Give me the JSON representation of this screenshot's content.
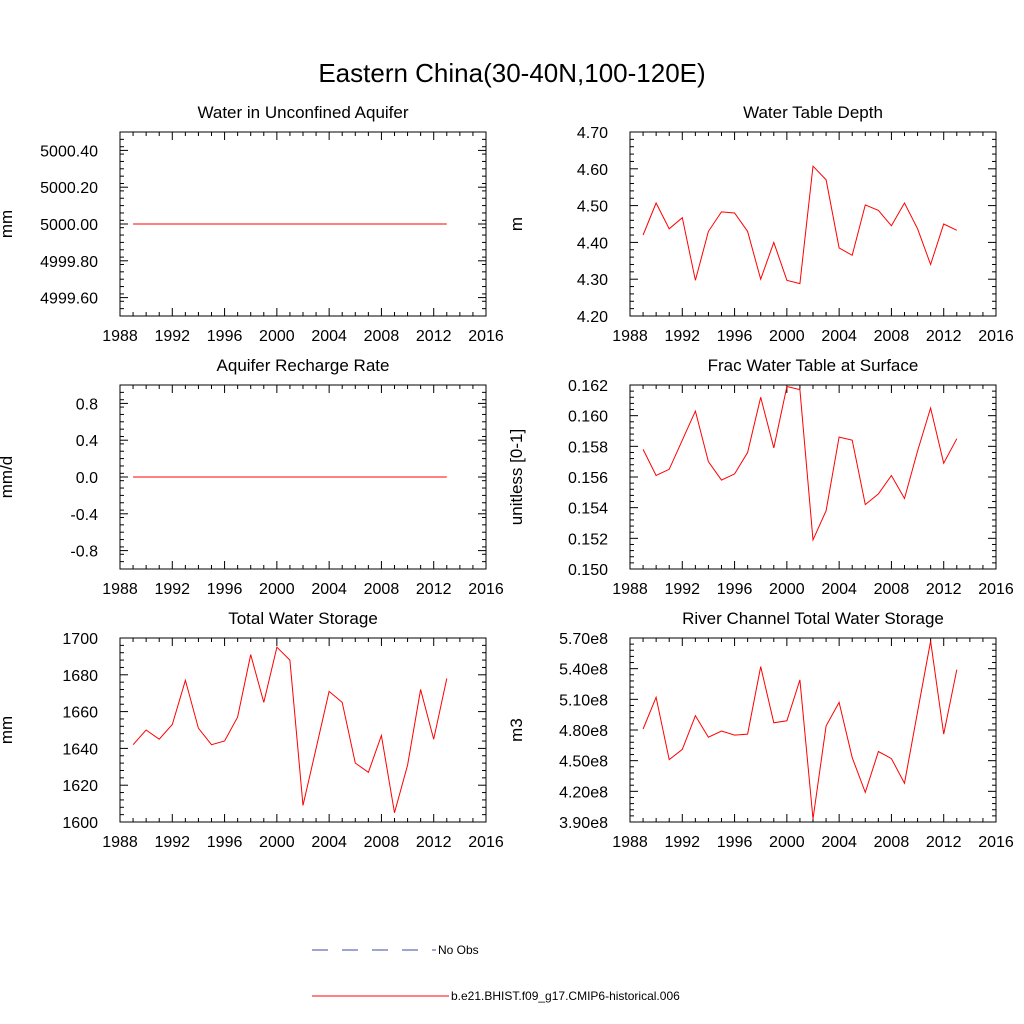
{
  "figure": {
    "title": "Eastern China(30-40N,100-120E)"
  },
  "legend": {
    "items": [
      {
        "label": "No Obs",
        "color": "#3b4ba0",
        "style": "dashed"
      },
      {
        "label": "b.e21.BHIST.f09_g17.CMIP6-historical.006",
        "color": "#ff0000",
        "style": "solid"
      }
    ]
  },
  "chart_data": [
    {
      "type": "line",
      "title": "Water in Unconfined Aquifer",
      "ylabel": "mm",
      "xlim": [
        1988,
        2016
      ],
      "ylim": [
        4999.5,
        5000.5
      ],
      "xticks": [
        1988,
        1992,
        1996,
        2000,
        2004,
        2008,
        2012,
        2016
      ],
      "xtick_labels": [
        "1988",
        "1992",
        "1996",
        "2000",
        "2004",
        "2008",
        "2012",
        "2016"
      ],
      "yticks": [
        4999.6,
        4999.8,
        5000.0,
        5000.2,
        5000.4
      ],
      "ytick_labels": [
        "4999.60",
        "4999.80",
        "5000.00",
        "5000.20",
        "5000.40"
      ],
      "series": [
        {
          "name": "b.e21.BHIST.f09_g17.CMIP6-historical.006",
          "color": "#ff0000",
          "x": [
            1989,
            1990,
            1991,
            1992,
            1993,
            1994,
            1995,
            1996,
            1997,
            1998,
            1999,
            2000,
            2001,
            2002,
            2003,
            2004,
            2005,
            2006,
            2007,
            2008,
            2009,
            2010,
            2011,
            2012,
            2013
          ],
          "y": [
            5000,
            5000,
            5000,
            5000,
            5000,
            5000,
            5000,
            5000,
            5000,
            5000,
            5000,
            5000,
            5000,
            5000,
            5000,
            5000,
            5000,
            5000,
            5000,
            5000,
            5000,
            5000,
            5000,
            5000,
            5000
          ]
        }
      ]
    },
    {
      "type": "line",
      "title": "Water Table Depth",
      "ylabel": "m",
      "xlim": [
        1988,
        2016
      ],
      "ylim": [
        4.2,
        4.7
      ],
      "xticks": [
        1988,
        1992,
        1996,
        2000,
        2004,
        2008,
        2012,
        2016
      ],
      "xtick_labels": [
        "1988",
        "1992",
        "1996",
        "2000",
        "2004",
        "2008",
        "2012",
        "2016"
      ],
      "yticks": [
        4.2,
        4.3,
        4.4,
        4.5,
        4.6,
        4.7
      ],
      "ytick_labels": [
        "4.20",
        "4.30",
        "4.40",
        "4.50",
        "4.60",
        "4.70"
      ],
      "series": [
        {
          "name": "b.e21.BHIST.f09_g17.CMIP6-historical.006",
          "color": "#ff0000",
          "x": [
            1989,
            1990,
            1991,
            1992,
            1993,
            1994,
            1995,
            1996,
            1997,
            1998,
            1999,
            2000,
            2001,
            2002,
            2003,
            2004,
            2005,
            2006,
            2007,
            2008,
            2009,
            2010,
            2011,
            2012,
            2013
          ],
          "y": [
            4.42,
            4.507,
            4.437,
            4.467,
            4.297,
            4.43,
            4.483,
            4.48,
            4.43,
            4.3,
            4.4,
            4.297,
            4.288,
            4.607,
            4.57,
            4.385,
            4.365,
            4.502,
            4.487,
            4.445,
            4.507,
            4.437,
            4.34,
            4.45,
            4.433
          ]
        }
      ]
    },
    {
      "type": "line",
      "title": "Aquifer Recharge Rate",
      "ylabel": "mm/d",
      "xlim": [
        1988,
        2016
      ],
      "ylim": [
        -1.0,
        1.0
      ],
      "xticks": [
        1988,
        1992,
        1996,
        2000,
        2004,
        2008,
        2012,
        2016
      ],
      "xtick_labels": [
        "1988",
        "1992",
        "1996",
        "2000",
        "2004",
        "2008",
        "2012",
        "2016"
      ],
      "yticks": [
        -0.8,
        -0.4,
        0.0,
        0.4,
        0.8
      ],
      "ytick_labels": [
        "-0.8",
        "-0.4",
        "0.0",
        "0.4",
        "0.8"
      ],
      "series": [
        {
          "name": "b.e21.BHIST.f09_g17.CMIP6-historical.006",
          "color": "#ff0000",
          "x": [
            1989,
            1990,
            1991,
            1992,
            1993,
            1994,
            1995,
            1996,
            1997,
            1998,
            1999,
            2000,
            2001,
            2002,
            2003,
            2004,
            2005,
            2006,
            2007,
            2008,
            2009,
            2010,
            2011,
            2012,
            2013
          ],
          "y": [
            0,
            0,
            0,
            0,
            0,
            0,
            0,
            0,
            0,
            0,
            0,
            0,
            0,
            0,
            0,
            0,
            0,
            0,
            0,
            0,
            0,
            0,
            0,
            0,
            0
          ]
        }
      ]
    },
    {
      "type": "line",
      "title": "Frac Water Table at Surface",
      "ylabel": "unitless [0-1]",
      "xlim": [
        1988,
        2016
      ],
      "ylim": [
        0.15,
        0.162
      ],
      "xticks": [
        1988,
        1992,
        1996,
        2000,
        2004,
        2008,
        2012,
        2016
      ],
      "xtick_labels": [
        "1988",
        "1992",
        "1996",
        "2000",
        "2004",
        "2008",
        "2012",
        "2016"
      ],
      "yticks": [
        0.15,
        0.152,
        0.154,
        0.156,
        0.158,
        0.16,
        0.162
      ],
      "ytick_labels": [
        "0.150",
        "0.152",
        "0.154",
        "0.156",
        "0.158",
        "0.160",
        "0.162"
      ],
      "series": [
        {
          "name": "b.e21.BHIST.f09_g17.CMIP6-historical.006",
          "color": "#ff0000",
          "x": [
            1989,
            1990,
            1991,
            1992,
            1993,
            1994,
            1995,
            1996,
            1997,
            1998,
            1999,
            2000,
            2001,
            2002,
            2003,
            2004,
            2005,
            2006,
            2007,
            2008,
            2009,
            2010,
            2011,
            2012,
            2013
          ],
          "y": [
            0.1578,
            0.1561,
            0.1565,
            0.1584,
            0.1603,
            0.157,
            0.1558,
            0.1562,
            0.1576,
            0.1612,
            0.1579,
            0.1619,
            0.1617,
            0.1519,
            0.1538,
            0.1586,
            0.1584,
            0.1542,
            0.1549,
            0.1561,
            0.1546,
            0.1577,
            0.1605,
            0.1569,
            0.1585
          ]
        }
      ]
    },
    {
      "type": "line",
      "title": "Total Water Storage",
      "ylabel": "mm",
      "xlim": [
        1988,
        2016
      ],
      "ylim": [
        1600,
        1700
      ],
      "xticks": [
        1988,
        1992,
        1996,
        2000,
        2004,
        2008,
        2012,
        2016
      ],
      "xtick_labels": [
        "1988",
        "1992",
        "1996",
        "2000",
        "2004",
        "2008",
        "2012",
        "2016"
      ],
      "yticks": [
        1600,
        1620,
        1640,
        1660,
        1680,
        1700
      ],
      "ytick_labels": [
        "1600",
        "1620",
        "1640",
        "1660",
        "1680",
        "1700"
      ],
      "series": [
        {
          "name": "b.e21.BHIST.f09_g17.CMIP6-historical.006",
          "color": "#ff0000",
          "x": [
            1989,
            1990,
            1991,
            1992,
            1993,
            1994,
            1995,
            1996,
            1997,
            1998,
            1999,
            2000,
            2001,
            2002,
            2003,
            2004,
            2005,
            2006,
            2007,
            2008,
            2009,
            2010,
            2011,
            2012,
            2013
          ],
          "y": [
            1642,
            1650,
            1645,
            1653,
            1677,
            1651,
            1642,
            1644,
            1657,
            1691,
            1665,
            1695,
            1688,
            1609,
            1640,
            1671,
            1665,
            1632,
            1627,
            1647,
            1605,
            1631,
            1672,
            1645,
            1678
          ]
        }
      ]
    },
    {
      "type": "line",
      "title": "River Channel Total Water Storage",
      "ylabel": "m3",
      "xlim": [
        1988,
        2016
      ],
      "ylim": [
        390000000,
        570000000
      ],
      "xticks": [
        1988,
        1992,
        1996,
        2000,
        2004,
        2008,
        2012,
        2016
      ],
      "xtick_labels": [
        "1988",
        "1992",
        "1996",
        "2000",
        "2004",
        "2008",
        "2012",
        "2016"
      ],
      "yticks": [
        390000000,
        420000000,
        450000000,
        480000000,
        510000000,
        540000000,
        570000000
      ],
      "ytick_labels": [
        "3.90e8",
        "4.20e8",
        "4.50e8",
        "4.80e8",
        "5.10e8",
        "5.40e8",
        "5.70e8"
      ],
      "series": [
        {
          "name": "b.e21.BHIST.f09_g17.CMIP6-historical.006",
          "color": "#ff0000",
          "x": [
            1989,
            1990,
            1991,
            1992,
            1993,
            1994,
            1995,
            1996,
            1997,
            1998,
            1999,
            2000,
            2001,
            2002,
            2003,
            2004,
            2005,
            2006,
            2007,
            2008,
            2009,
            2010,
            2011,
            2012,
            2013
          ],
          "y": [
            481000000,
            512000000,
            451000000,
            461000000,
            494000000,
            473000000,
            479000000,
            475000000,
            476000000,
            542000000,
            487000000,
            489000000,
            529000000,
            393000000,
            484000000,
            507000000,
            453000000,
            419000000,
            459000000,
            452000000,
            428000000,
            498000000,
            567000000,
            476000000,
            539000000
          ]
        }
      ]
    }
  ]
}
